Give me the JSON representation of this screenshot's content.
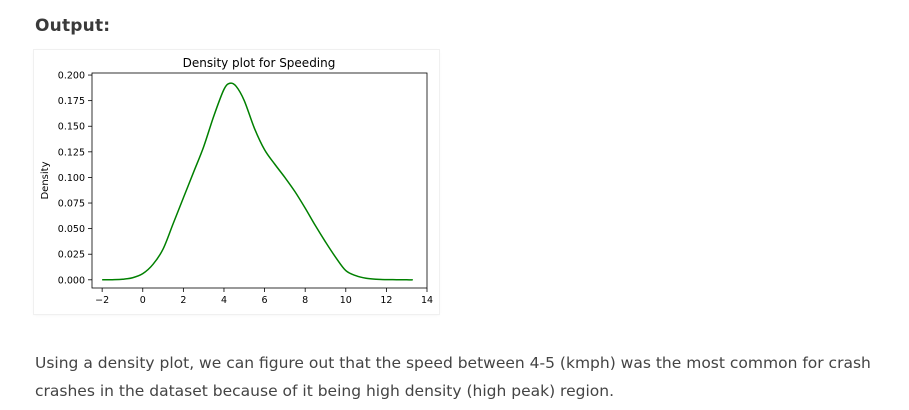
{
  "page": {
    "heading": "Output:",
    "paragraph": "Using a density plot, we can figure out that the speed between 4-5 (kmph) was the most common for crash crashes in the dataset because of it being high density (high peak) region."
  },
  "chart_data": {
    "type": "line",
    "title": "Density plot for Speeding",
    "xlabel": "",
    "ylabel": "Density",
    "xlim": [
      -2.5,
      14
    ],
    "ylim": [
      -0.008,
      0.202
    ],
    "x_ticks": [
      -2,
      0,
      2,
      4,
      6,
      8,
      10,
      12,
      14
    ],
    "x_tick_labels": [
      "−2",
      "0",
      "2",
      "4",
      "6",
      "8",
      "10",
      "12",
      "14"
    ],
    "y_ticks": [
      0.0,
      0.025,
      0.05,
      0.075,
      0.1,
      0.125,
      0.15,
      0.175,
      0.2
    ],
    "y_tick_labels": [
      "0.000",
      "0.025",
      "0.050",
      "0.075",
      "0.100",
      "0.125",
      "0.150",
      "0.175",
      "0.200"
    ],
    "grid": false,
    "series": [
      {
        "color": "#008000",
        "x": [
          -2.0,
          -1.5,
          -1.0,
          -0.5,
          0.0,
          0.5,
          1.0,
          1.5,
          2.0,
          2.5,
          3.0,
          3.5,
          4.0,
          4.3,
          4.6,
          5.0,
          5.5,
          6.0,
          6.5,
          7.0,
          7.5,
          8.0,
          8.5,
          9.0,
          9.5,
          10.0,
          10.5,
          11.0,
          11.5,
          12.0,
          12.5,
          13.0,
          13.3
        ],
        "y": [
          0.0,
          0.0001,
          0.0005,
          0.002,
          0.006,
          0.015,
          0.03,
          0.055,
          0.08,
          0.105,
          0.13,
          0.16,
          0.186,
          0.192,
          0.189,
          0.175,
          0.148,
          0.127,
          0.113,
          0.1,
          0.086,
          0.07,
          0.053,
          0.037,
          0.022,
          0.009,
          0.004,
          0.0015,
          0.0005,
          0.0002,
          0.0001,
          0.0,
          0.0
        ]
      }
    ]
  }
}
